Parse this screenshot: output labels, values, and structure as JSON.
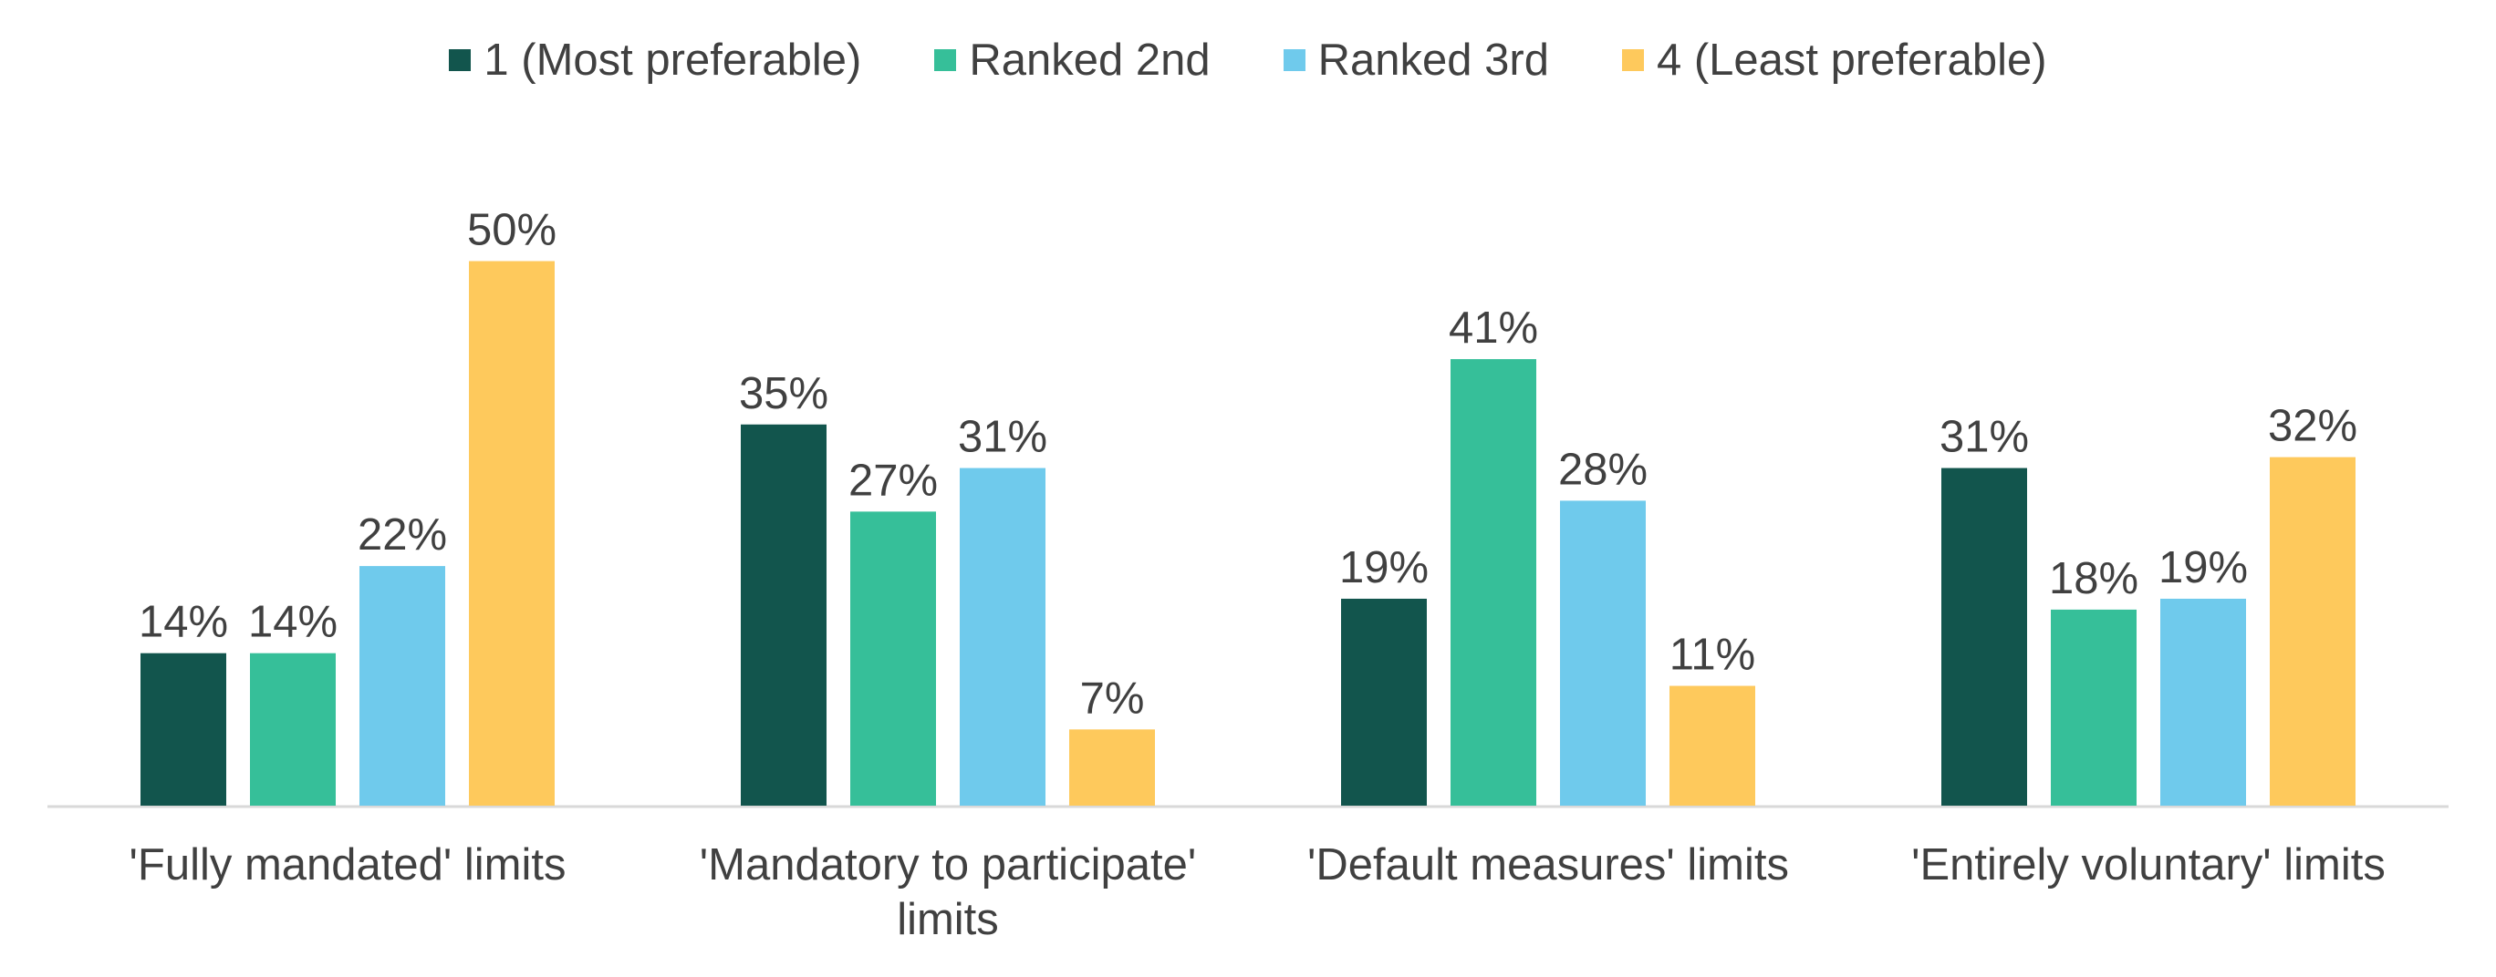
{
  "chart_data": {
    "type": "bar",
    "title": "",
    "xlabel": "",
    "ylabel": "",
    "ylim": [
      0,
      55
    ],
    "grid": false,
    "legend_position": "top",
    "categories": [
      [
        "'Fully mandated' limits"
      ],
      [
        "'Mandatory to participate'",
        "limits"
      ],
      [
        "'Default measures' limits"
      ],
      [
        "'Entirely voluntary' limits"
      ]
    ],
    "series": [
      {
        "name": "1 (Most preferable)",
        "color": "#12554d",
        "values": [
          14,
          35,
          19,
          31
        ]
      },
      {
        "name": "Ranked 2nd",
        "color": "#36bf99",
        "values": [
          14,
          27,
          41,
          18
        ]
      },
      {
        "name": "Ranked 3rd",
        "color": "#6fcaec",
        "values": [
          22,
          31,
          28,
          19
        ]
      },
      {
        "name": "4 (Least preferable)",
        "color": "#fec95c",
        "values": [
          50,
          7,
          11,
          32
        ]
      }
    ],
    "value_suffix": "%",
    "axis_color": "#d9d9d9"
  }
}
